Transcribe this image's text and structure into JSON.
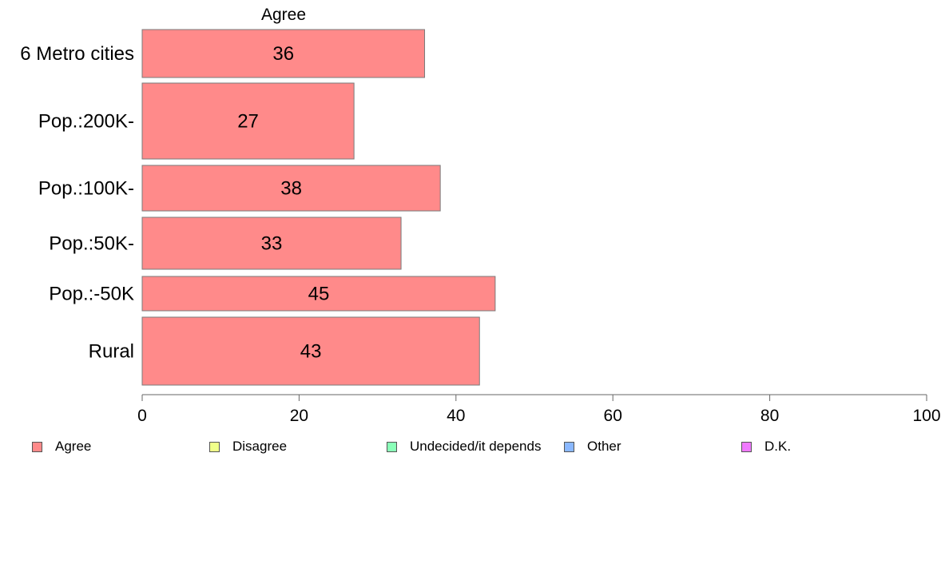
{
  "chart_data": {
    "type": "bar",
    "orientation": "horizontal",
    "title": "Agree",
    "xlabel": "",
    "ylabel": "",
    "xlim": [
      0,
      100
    ],
    "xticks": [
      0,
      20,
      40,
      60,
      80,
      100
    ],
    "categories": [
      "6 Metro cities",
      "Pop.:200K-",
      "Pop.:100K-",
      "Pop.:50K-",
      "Pop.:-50K",
      "Rural"
    ],
    "series": [
      {
        "name": "Agree",
        "values": [
          36,
          27,
          38,
          33,
          45,
          43
        ],
        "value_labels": [
          "36",
          "27",
          "38",
          "33",
          "45",
          "43"
        ],
        "color": "#ff8a8a"
      }
    ],
    "grid": false,
    "legend_position": "bottom"
  },
  "legend": {
    "items": [
      {
        "label": "Agree",
        "color": "#ff8a8a"
      },
      {
        "label": "Disagree",
        "color": "#f0ff8a"
      },
      {
        "label": "Undecided/it depends",
        "color": "#8affb8"
      },
      {
        "label": "Other",
        "color": "#8ab8ff"
      },
      {
        "label": "D.K.",
        "color": "#f07aff"
      }
    ]
  }
}
